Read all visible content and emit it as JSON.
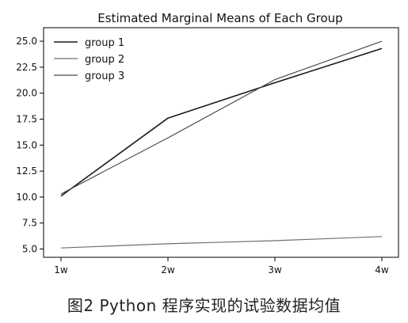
{
  "chart_data": {
    "type": "line",
    "title": "Estimated Marginal Means of Each Group",
    "categories": [
      "1w",
      "2w",
      "3w",
      "4w"
    ],
    "yticks": [
      "5.0",
      "7.5",
      "10.0",
      "12.5",
      "15.0",
      "17.5",
      "20.0",
      "22.5",
      "25.0"
    ],
    "ytick_values": [
      5.0,
      7.5,
      10.0,
      12.5,
      15.0,
      17.5,
      20.0,
      22.5,
      25.0
    ],
    "ylim": [
      4.2,
      26.3
    ],
    "xlabel": "",
    "ylabel": "",
    "grid": false,
    "legend_position": "top-left",
    "series": [
      {
        "name": "group 1",
        "values": [
          10.1,
          17.6,
          21.0,
          24.3
        ],
        "color": "#1a1a1a"
      },
      {
        "name": "group 2",
        "values": [
          5.1,
          5.5,
          5.8,
          6.2
        ],
        "color": "#6f6f6f"
      },
      {
        "name": "group 3",
        "values": [
          10.3,
          15.7,
          21.3,
          25.0
        ],
        "color": "#4a4a4a"
      }
    ]
  },
  "caption": "图2   Python 程序实现的试验数据均值"
}
